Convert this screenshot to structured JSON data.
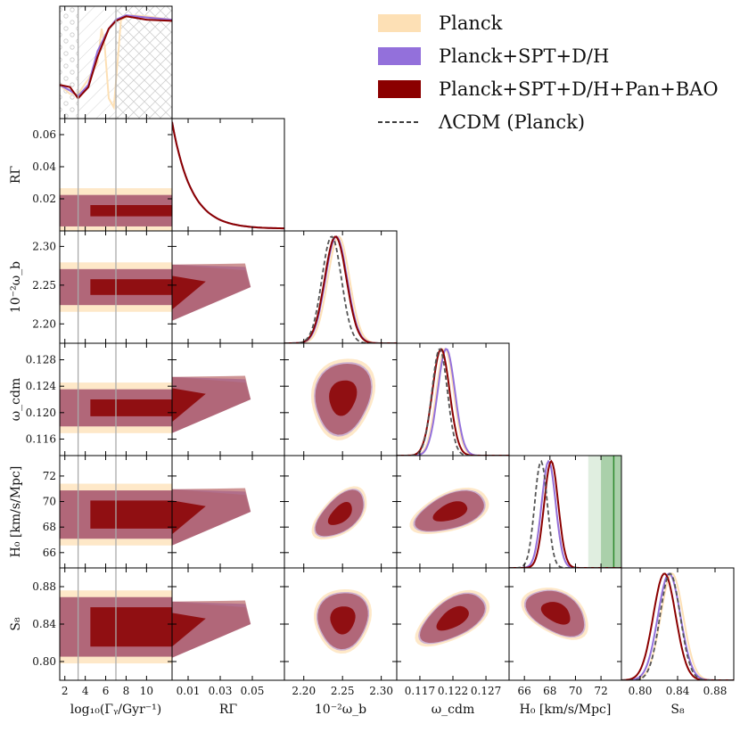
{
  "chart_data": {
    "type": "corner",
    "parameters": [
      {
        "key": "logGamma",
        "label": "log₁₀(Γᵧ/Gyr⁻¹)",
        "range": [
          1.5,
          12.5
        ],
        "ticks": [
          2,
          4,
          6,
          8,
          10
        ],
        "tick_labels": [
          "2",
          "4",
          "6",
          "8",
          "10"
        ]
      },
      {
        "key": "RGamma",
        "label": "RΓ",
        "range": [
          0,
          0.07
        ],
        "ticks": [
          0.01,
          0.03,
          0.05
        ],
        "tick_labels": [
          "0.01",
          "0.03",
          "0.05"
        ],
        "y_ticks": [
          0.02,
          0.04,
          0.06
        ],
        "y_tick_labels": [
          "0.02",
          "0.04",
          "0.06"
        ]
      },
      {
        "key": "omegab",
        "label": "10⁻²ω_b",
        "range": [
          2.175,
          2.32
        ],
        "ticks": [
          2.2,
          2.25,
          2.3
        ],
        "tick_labels": [
          "2.20",
          "2.25",
          "2.30"
        ]
      },
      {
        "key": "omegacdm",
        "label": "ω_cdm",
        "range": [
          0.1135,
          0.1305
        ],
        "ticks": [
          0.117,
          0.122,
          0.127
        ],
        "tick_labels": [
          "0.117",
          "0.122",
          "0.127"
        ],
        "y_ticks": [
          0.116,
          0.12,
          0.124,
          0.128
        ],
        "y_tick_labels": [
          "0.116",
          "0.120",
          "0.124",
          "0.128"
        ]
      },
      {
        "key": "H0",
        "label": "H₀ [km/s/Mpc]",
        "range": [
          64.8,
          73.6
        ],
        "ticks": [
          66,
          68,
          70,
          72
        ],
        "tick_labels": [
          "66",
          "68",
          "70",
          "72"
        ]
      },
      {
        "key": "S8",
        "label": "S₈",
        "range": [
          0.78,
          0.9
        ],
        "ticks": [
          0.8,
          0.84,
          0.88
        ],
        "tick_labels": [
          "0.80",
          "0.84",
          "0.88"
        ]
      }
    ],
    "series": [
      {
        "name": "Planck",
        "color": "#fde0b5"
      },
      {
        "name": "Planck+SPT+D/H",
        "color": "#9370db"
      },
      {
        "name": "Planck+SPT+D/H+Pan+BAO",
        "color": "#8b0000"
      },
      {
        "name": "ΛCDM (Planck)",
        "color": "#555555",
        "style": "dashed"
      }
    ],
    "means": {
      "Planck": {
        "omegab": 2.245,
        "omegacdm": 0.1208,
        "H0": 67.9,
        "S8": 0.834
      },
      "Planck+SPT+D/H": {
        "omegab": 2.242,
        "omegacdm": 0.121,
        "H0": 67.9,
        "S8": 0.831
      },
      "Planck+SPT+D/H+Pan+BAO": {
        "omegab": 2.241,
        "omegacdm": 0.1202,
        "H0": 68.1,
        "S8": 0.826
      },
      "ΛCDM (Planck)": {
        "omegab": 2.236,
        "omegacdm": 0.12,
        "H0": 67.3,
        "S8": 0.832
      }
    },
    "reference_lines": {
      "logGamma": [
        3.3,
        7.0
      ]
    },
    "H0_band": {
      "center": 73.0,
      "inner": [
        72.0,
        73.6
      ],
      "outer": [
        71.0,
        73.6
      ],
      "color": "#2e8b2e"
    }
  }
}
